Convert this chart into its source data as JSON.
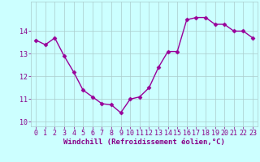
{
  "x": [
    0,
    1,
    2,
    3,
    4,
    5,
    6,
    7,
    8,
    9,
    10,
    11,
    12,
    13,
    14,
    15,
    16,
    17,
    18,
    19,
    20,
    21,
    22,
    23
  ],
  "y": [
    13.6,
    13.4,
    13.7,
    12.9,
    12.2,
    11.4,
    11.1,
    10.8,
    10.75,
    10.4,
    11.0,
    11.1,
    11.5,
    12.4,
    13.1,
    13.1,
    14.5,
    14.6,
    14.6,
    14.3,
    14.3,
    14.0,
    14.0,
    13.7
  ],
  "line_color": "#990099",
  "marker": "D",
  "marker_size": 2.5,
  "line_width": 1.0,
  "bg_color": "#ccffff",
  "grid_color": "#aacccc",
  "xlabel": "Windchill (Refroidissement éolien,°C)",
  "xlabel_color": "#880088",
  "xlabel_fontsize": 6.5,
  "tick_color": "#880088",
  "tick_fontsize": 6,
  "ylim": [
    9.8,
    15.3
  ],
  "yticks": [
    10,
    11,
    12,
    13,
    14
  ],
  "xticks": [
    0,
    1,
    2,
    3,
    4,
    5,
    6,
    7,
    8,
    9,
    10,
    11,
    12,
    13,
    14,
    15,
    16,
    17,
    18,
    19,
    20,
    21,
    22,
    23
  ]
}
